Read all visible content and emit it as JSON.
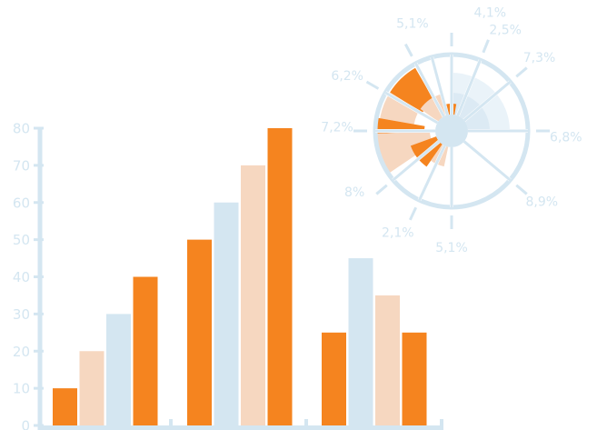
{
  "colors": {
    "orange": "#f5841f",
    "peach": "#f6d7c0",
    "lightblue": "#d4e6f1",
    "axis": "#d4e6f1",
    "label": "#d4e6f1"
  },
  "chart_data": [
    {
      "type": "bar",
      "title": "",
      "xlabel": "",
      "ylabel": "",
      "ylim": [
        0,
        80
      ],
      "yticks": [
        "0",
        "10",
        "20",
        "30",
        "40",
        "50",
        "60",
        "70",
        "80"
      ],
      "categories": [
        "",
        "",
        ""
      ],
      "grid": false,
      "series": [
        {
          "color": "orange",
          "values": [
            10,
            50,
            25
          ]
        },
        {
          "color": "peach",
          "values": [
            20,
            null,
            null
          ]
        },
        {
          "color": "lightblue",
          "values": [
            30,
            60,
            45
          ]
        },
        {
          "color": "peach",
          "values": [
            null,
            70,
            35
          ]
        },
        {
          "color": "orange",
          "values": [
            40,
            80,
            25
          ]
        }
      ],
      "bar_groups": [
        [
          {
            "v": 10,
            "c": "orange"
          },
          {
            "v": 20,
            "c": "peach"
          },
          {
            "v": 30,
            "c": "lightblue"
          },
          {
            "v": 40,
            "c": "orange"
          }
        ],
        [
          {
            "v": 50,
            "c": "orange"
          },
          {
            "v": 60,
            "c": "lightblue"
          },
          {
            "v": 70,
            "c": "peach"
          },
          {
            "v": 80,
            "c": "orange"
          }
        ],
        [
          {
            "v": 25,
            "c": "orange"
          },
          {
            "v": 45,
            "c": "lightblue"
          },
          {
            "v": 35,
            "c": "peach"
          },
          {
            "v": 25,
            "c": "orange"
          }
        ]
      ]
    },
    {
      "type": "pie",
      "title": "",
      "labels": [
        "4,1%",
        "2,5%",
        "7,3%",
        "6,8%",
        "8,9%",
        "5,1%",
        "2,1%",
        "8%",
        "7,2%",
        "6,2%",
        "5,1%"
      ],
      "values": [
        4.1,
        2.5,
        7.3,
        6.8,
        8.9,
        5.1,
        2.1,
        8.0,
        7.2,
        6.2,
        5.1
      ]
    }
  ]
}
